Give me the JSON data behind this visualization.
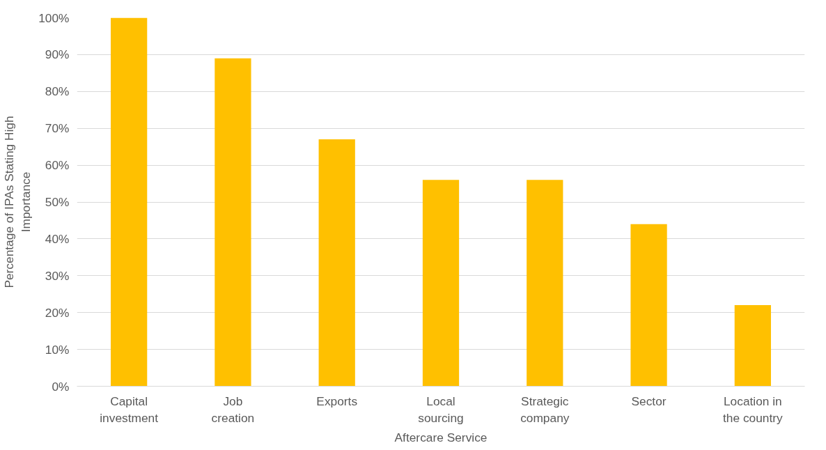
{
  "chart_data": {
    "type": "bar",
    "xlabel": "Aftercare Service",
    "ylabel": "Percentage of IPAs Stating High Importance",
    "categories": [
      "Capital investment",
      "Job creation",
      "Exports",
      "Local sourcing",
      "Strategic company",
      "Sector",
      "Location in the country"
    ],
    "values": [
      100,
      89,
      67,
      56,
      56,
      44,
      22
    ],
    "color": "#ffc000",
    "ylim": [
      0,
      100
    ],
    "yticks": [
      {
        "value": 0,
        "label": "0%"
      },
      {
        "value": 10,
        "label": "10%"
      },
      {
        "value": 20,
        "label": "20%"
      },
      {
        "value": 30,
        "label": "30%"
      },
      {
        "value": 40,
        "label": "40%"
      },
      {
        "value": 50,
        "label": "50%"
      },
      {
        "value": 60,
        "label": "60%"
      },
      {
        "value": 70,
        "label": "70%"
      },
      {
        "value": 80,
        "label": "80%"
      },
      {
        "value": 90,
        "label": "90%"
      },
      {
        "value": 100,
        "label": "100%"
      }
    ],
    "grid": "y"
  }
}
